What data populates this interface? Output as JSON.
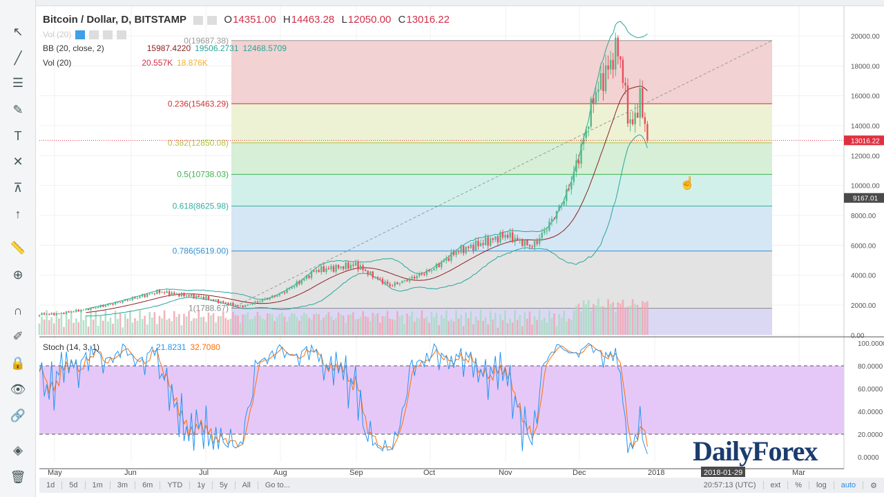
{
  "header": {
    "symbol": "Bitcoin / Dollar, D, BITSTAMP",
    "o_label": "O",
    "o": "14351.00",
    "h_label": "H",
    "h": "14463.28",
    "l_label": "L",
    "l": "12050.00",
    "c_label": "C",
    "c": "13016.22"
  },
  "indicators": {
    "vol_top": "Vol (20)",
    "bb_label": "BB (20, close, 2)",
    "bb_mid": "15987.4220",
    "bb_up": "19506.2731",
    "bb_low": "12468.5709",
    "vol_label": "Vol (20)",
    "vol_val": "20.557K",
    "vol_ma": "18.876K",
    "stoch_label": "Stoch (14, 3, 1)",
    "stoch_k": "21.8231",
    "stoch_d": "32.7080"
  },
  "bottom": {
    "ranges": [
      "1d",
      "5d",
      "1m",
      "3m",
      "6m",
      "YTD",
      "1y",
      "5y",
      "All",
      "Go to..."
    ],
    "time": "20:57:13 (UTC)",
    "ext": "ext",
    "pct": "%",
    "log": "log",
    "auto": "auto"
  },
  "watermark": "DailyForex",
  "colors": {
    "up": "#53b987",
    "down": "#eb4d5c",
    "bb": "#26a69a",
    "bb_mid": "#8b2020",
    "stoch_k": "#2196f3",
    "stoch_d": "#ff6d00"
  },
  "chart_data": {
    "type": "candlestick",
    "title": "Bitcoin / Dollar, D, BITSTAMP",
    "x_ticks": [
      "May",
      "Jun",
      "Jul",
      "Aug",
      "Sep",
      "Oct",
      "Nov",
      "Dec",
      "2018",
      "Mar"
    ],
    "crosshair_date": "2018-01-29",
    "y_ticks": [
      "0.00",
      "2000.00",
      "4000.00",
      "6000.00",
      "8000.00",
      "10000.00",
      "12000.00",
      "14000.00",
      "16000.00",
      "18000.00",
      "20000.00"
    ],
    "ylim": [
      0,
      20500
    ],
    "last_price": "13016.22",
    "cursor_price": "9167.01",
    "close_keypoints": [
      [
        "2017-05-01",
        1400
      ],
      [
        "2017-05-15",
        1750
      ],
      [
        "2017-06-01",
        2400
      ],
      [
        "2017-06-12",
        2900
      ],
      [
        "2017-07-01",
        2500
      ],
      [
        "2017-07-16",
        1900
      ],
      [
        "2017-08-01",
        2750
      ],
      [
        "2017-08-15",
        4300
      ],
      [
        "2017-09-01",
        4700
      ],
      [
        "2017-09-15",
        3300
      ],
      [
        "2017-10-01",
        4300
      ],
      [
        "2017-10-12",
        5600
      ],
      [
        "2017-11-01",
        6700
      ],
      [
        "2017-11-12",
        5900
      ],
      [
        "2017-11-26",
        9500
      ],
      [
        "2017-12-07",
        16000
      ],
      [
        "2017-12-17",
        19300
      ],
      [
        "2017-12-22",
        13800
      ],
      [
        "2017-12-26",
        15800
      ],
      [
        "2017-12-29",
        13016
      ]
    ],
    "fib_levels": [
      {
        "label": "0(19687.38)",
        "level": 0,
        "price": 19687.38
      },
      {
        "label": "0.236(15463.29)",
        "level": 0.236,
        "price": 15463.29
      },
      {
        "label": "0.382(12850.08)",
        "level": 0.382,
        "price": 12850.08
      },
      {
        "label": "0.5(10738.03)",
        "level": 0.5,
        "price": 10738.03
      },
      {
        "label": "0.618(8625.98)",
        "level": 0.618,
        "price": 8625.98
      },
      {
        "label": "0.786(5619.00)",
        "level": 0.786,
        "price": 5619.0
      },
      {
        "label": "1(1788.67)",
        "level": 1,
        "price": 1788.67
      }
    ],
    "stoch_ticks": [
      "0.0000",
      "20.0000",
      "40.0000",
      "60.0000",
      "80.0000",
      "100.0000"
    ],
    "stoch_bands": [
      20,
      80
    ]
  }
}
